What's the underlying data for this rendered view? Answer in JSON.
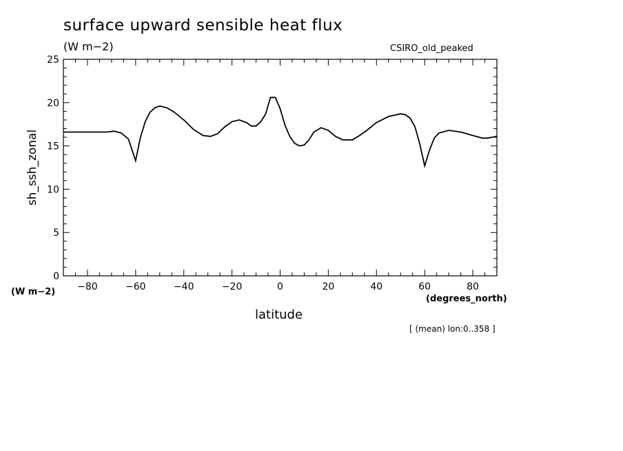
{
  "chart_data": {
    "type": "line",
    "title": "surface upward sensible heat flux",
    "units": "(W m−2)",
    "model": "CSIRO_old_peaked",
    "ylabel": "sh_ssh_zonal",
    "yunit": "(W m−2)",
    "xlabel": "latitude",
    "xunit": "(degrees_north)",
    "note": "[ (mean) lon:0..358 ]",
    "xlim": [
      -90,
      90
    ],
    "ylim": [
      0,
      25
    ],
    "xticks": [
      -80,
      -60,
      -40,
      -20,
      0,
      20,
      40,
      60,
      80
    ],
    "yticks": [
      0,
      5,
      10,
      15,
      20,
      25
    ],
    "xtick_labels": [
      "−80",
      "−60",
      "−40",
      "−20",
      "0",
      "20",
      "40",
      "60",
      "80"
    ],
    "ytick_labels": [
      "0",
      "5",
      "10",
      "15",
      "20",
      "25"
    ],
    "series": [
      {
        "x": [
          -90,
          -80,
          -72,
          -69,
          -66,
          -63,
          -60,
          -58,
          -56,
          -54,
          -52,
          -50,
          -47,
          -44,
          -40,
          -36,
          -32,
          -29,
          -26,
          -23,
          -20,
          -17,
          -14,
          -12,
          -10,
          -8,
          -6,
          -4,
          -2,
          0,
          2,
          4,
          6,
          8,
          10,
          12,
          14,
          17,
          20,
          23,
          26,
          30,
          33,
          36,
          40,
          45,
          50,
          52,
          54,
          56,
          58,
          60,
          62,
          64,
          66,
          70,
          75,
          80,
          84,
          86,
          88,
          90
        ],
        "y": [
          16.6,
          16.6,
          16.6,
          16.7,
          16.5,
          15.8,
          13.3,
          16.0,
          17.8,
          18.9,
          19.4,
          19.6,
          19.4,
          18.9,
          18.0,
          16.9,
          16.2,
          16.1,
          16.4,
          17.2,
          17.8,
          18.0,
          17.7,
          17.3,
          17.3,
          17.8,
          18.7,
          20.6,
          20.6,
          19.3,
          17.4,
          16.1,
          15.3,
          15.0,
          15.1,
          15.7,
          16.6,
          17.1,
          16.8,
          16.1,
          15.7,
          15.7,
          16.2,
          16.8,
          17.7,
          18.4,
          18.7,
          18.6,
          18.2,
          17.2,
          15.2,
          12.7,
          14.5,
          15.9,
          16.5,
          16.8,
          16.6,
          16.2,
          15.9,
          15.9,
          16.0,
          16.1
        ]
      }
    ],
    "grid": false,
    "line_color": "#000000"
  }
}
